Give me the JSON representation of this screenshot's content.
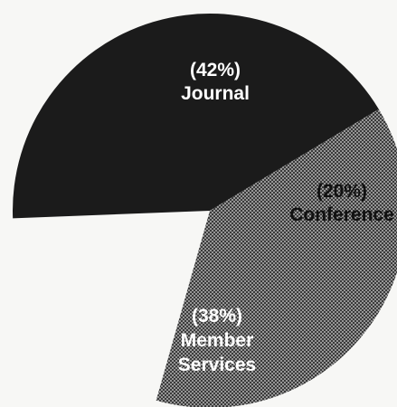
{
  "chart_data": {
    "type": "pie",
    "title": "",
    "slices": [
      {
        "label": "Journal",
        "percent_text": "(42%)",
        "value": 42,
        "fill": "#1b1b1b",
        "pattern": "solid",
        "label_color": "#ffffff"
      },
      {
        "label": "Conference",
        "percent_text": "(20%)",
        "value": 20,
        "fill": "#f7f7f5",
        "pattern": "none",
        "label_color": "#111111"
      },
      {
        "label": "Member Services",
        "label_lines": [
          "Member",
          "Services"
        ],
        "percent_text": "(38%)",
        "value": 38,
        "fill": "#3a3a3a",
        "pattern": "halftone",
        "label_color": "#ffffff"
      }
    ]
  },
  "colors": {
    "background": "#f7f7f5",
    "dark_slice": "#1b1b1b",
    "halftone_base": "#3a3a3a",
    "halftone_dot": "#d8d8d8"
  }
}
